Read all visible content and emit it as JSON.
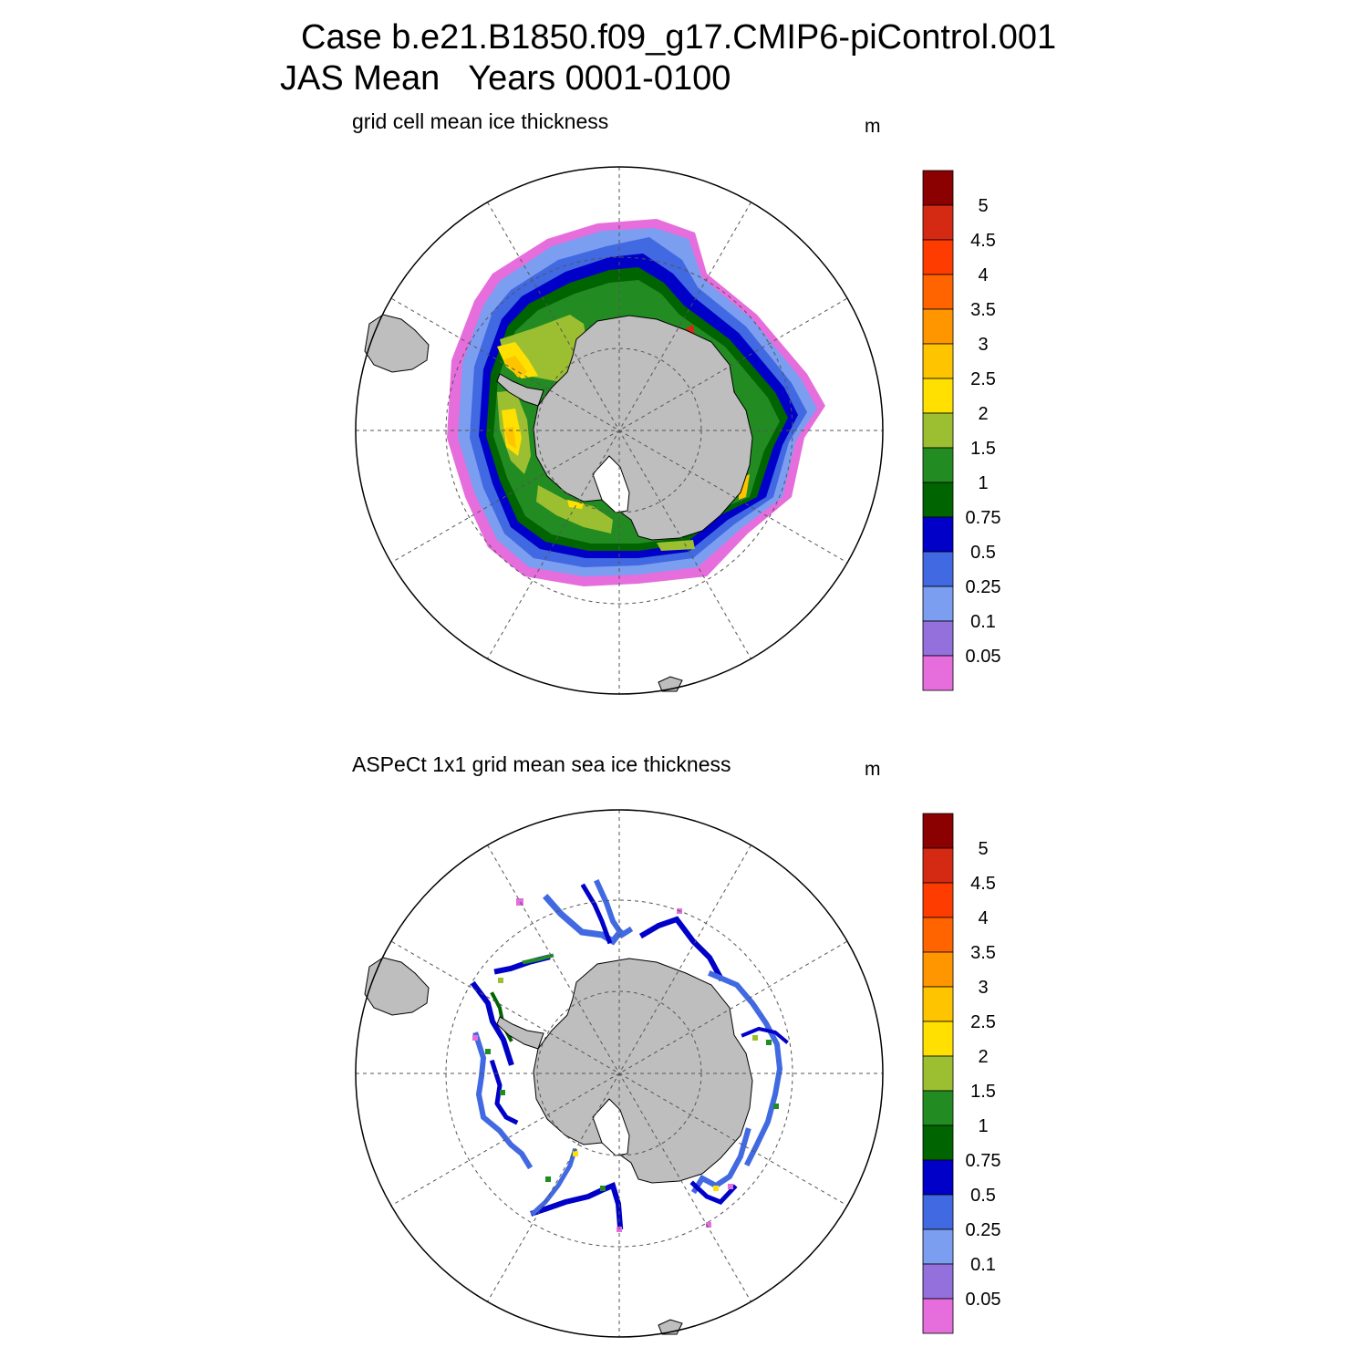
{
  "figure": {
    "title_line1": "Case b.e21.B1850.f09_g17.CMIP6-piControl.001",
    "title_line2": "JAS Mean   Years 0001-0100"
  },
  "panels": [
    {
      "id": "model",
      "title": "grid cell mean ice thickness",
      "units": "m"
    },
    {
      "id": "observations",
      "title": "ASPeCt 1x1 grid mean sea ice thickness",
      "units": "m"
    }
  ],
  "colorbar": {
    "labels": [
      "5",
      "4.5",
      "4",
      "3.5",
      "3",
      "2.5",
      "2",
      "1.5",
      "1",
      "0.75",
      "0.5",
      "0.25",
      "0.1",
      "0.05"
    ],
    "colors": [
      "#8b0000",
      "#d42a14",
      "#ff3c00",
      "#ff6400",
      "#ff9600",
      "#ffc400",
      "#ffe000",
      "#9bbf30",
      "#228b22",
      "#006400",
      "#0000c8",
      "#4169e1",
      "#7b9ef0",
      "#9370db",
      "#e66edc"
    ]
  },
  "map": {
    "projection": "south polar stereographic",
    "land_color": "#bebebe",
    "ice_levels_m": [
      0.05,
      0.1,
      0.25,
      0.5,
      0.75,
      1,
      1.5,
      2,
      2.5,
      3,
      3.5,
      4,
      4.5,
      5
    ]
  }
}
